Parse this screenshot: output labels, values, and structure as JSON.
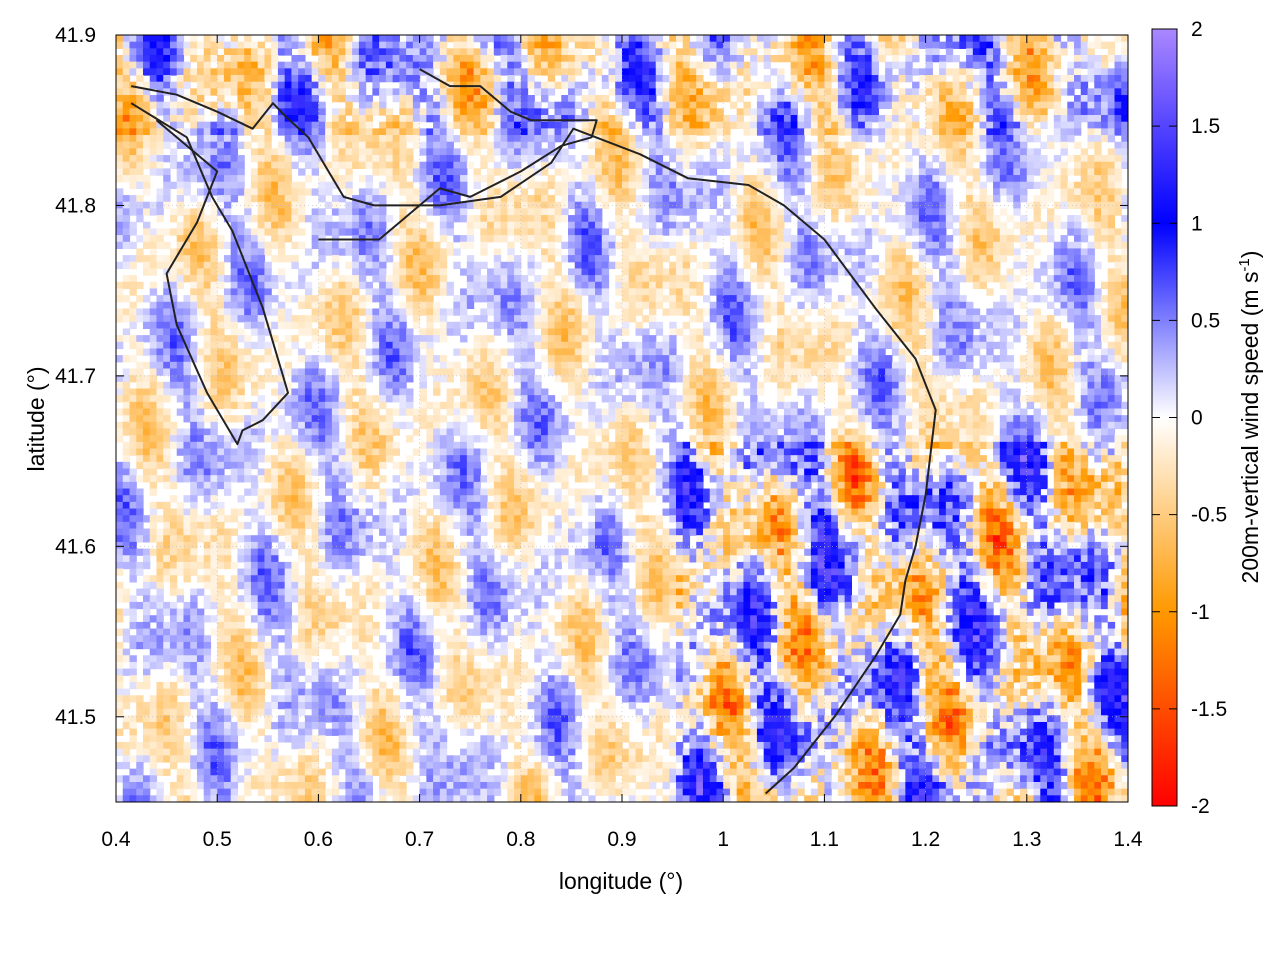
{
  "chart_data": {
    "type": "heatmap",
    "xlabel": "longitude (°)",
    "ylabel": "latitude (°)",
    "xlim": [
      0.4,
      1.4
    ],
    "ylim": [
      41.45,
      41.9
    ],
    "x_ticks": [
      "0.4",
      "0.5",
      "0.6",
      "0.7",
      "0.8",
      "0.9",
      "1",
      "1.1",
      "1.2",
      "1.3",
      "1.4"
    ],
    "y_ticks": [
      "41.5",
      "41.6",
      "41.7",
      "41.8",
      "41.9"
    ],
    "grid": true,
    "colorbar": {
      "label_main": "200m-vertical wind speed (m s",
      "label_sup": "-1",
      "label_close": ")",
      "range": [
        -2,
        2
      ],
      "ticks": [
        "2",
        "1.5",
        "1",
        "0.5",
        "0",
        "-0.5",
        "-1",
        "-1.5",
        "-2"
      ],
      "stops": [
        {
          "value": -2,
          "color": "#ff0000"
        },
        {
          "value": -1,
          "color": "#ff9900"
        },
        {
          "value": 0,
          "color": "#ffffff"
        },
        {
          "value": 1,
          "color": "#0000ff"
        },
        {
          "value": 2,
          "color": "#aa88ff"
        }
      ]
    },
    "contour_color": "#222222",
    "contours": [
      [
        [
          0.415,
          41.87
        ],
        [
          0.46,
          41.865
        ],
        [
          0.5,
          41.855
        ],
        [
          0.535,
          41.845
        ],
        [
          0.555,
          41.86
        ],
        [
          0.568,
          41.852
        ],
        [
          0.59,
          41.84
        ],
        [
          0.61,
          41.82
        ],
        [
          0.625,
          41.805
        ],
        [
          0.655,
          41.8
        ],
        [
          0.72,
          41.8
        ],
        [
          0.78,
          41.805
        ],
        [
          0.83,
          41.825
        ],
        [
          0.852,
          41.845
        ],
        [
          0.918,
          41.83
        ],
        [
          0.965,
          41.816
        ],
        [
          1.025,
          41.812
        ],
        [
          1.06,
          41.8
        ],
        [
          1.1,
          41.78
        ],
        [
          1.15,
          41.74
        ],
        [
          1.19,
          41.71
        ],
        [
          1.21,
          41.68
        ],
        [
          1.2,
          41.63
        ],
        [
          1.19,
          41.6
        ],
        [
          1.18,
          41.58
        ],
        [
          1.175,
          41.56
        ],
        [
          1.15,
          41.535
        ],
        [
          1.11,
          41.5
        ],
        [
          1.07,
          41.47
        ],
        [
          1.042,
          41.455
        ]
      ],
      [
        [
          0.415,
          41.86
        ],
        [
          0.47,
          41.84
        ],
        [
          0.495,
          41.805
        ],
        [
          0.515,
          41.785
        ],
        [
          0.545,
          41.74
        ],
        [
          0.565,
          41.7
        ],
        [
          0.57,
          41.69
        ],
        [
          0.545,
          41.674
        ],
        [
          0.525,
          41.668
        ],
        [
          0.52,
          41.66
        ],
        [
          0.49,
          41.69
        ],
        [
          0.46,
          41.73
        ],
        [
          0.45,
          41.76
        ],
        [
          0.48,
          41.79
        ],
        [
          0.5,
          41.82
        ],
        [
          0.44,
          41.85
        ]
      ],
      [
        [
          0.7,
          41.88
        ],
        [
          0.73,
          41.87
        ],
        [
          0.76,
          41.87
        ],
        [
          0.79,
          41.855
        ],
        [
          0.81,
          41.85
        ],
        [
          0.875,
          41.85
        ],
        [
          0.87,
          41.84
        ],
        [
          0.84,
          41.835
        ],
        [
          0.8,
          41.82
        ],
        [
          0.75,
          41.805
        ],
        [
          0.72,
          41.81
        ],
        [
          0.7,
          41.8
        ],
        [
          0.68,
          41.79
        ],
        [
          0.66,
          41.78
        ],
        [
          0.62,
          41.78
        ],
        [
          0.6,
          41.78
        ]
      ]
    ]
  }
}
